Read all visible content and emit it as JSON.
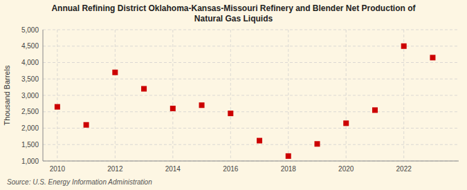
{
  "chart_data": {
    "type": "scatter",
    "title": "Annual Refining District Oklahoma-Kansas-Missouri Refinery and Blender Net Production of\nNatural Gas Liquids",
    "ylabel": "Thousand Barrels",
    "source": "Source: U.S. Energy Information Administration",
    "x": [
      2010,
      2011,
      2012,
      2013,
      2014,
      2015,
      2016,
      2017,
      2018,
      2019,
      2020,
      2021,
      2022,
      2023
    ],
    "values": [
      2650,
      2100,
      3700,
      3200,
      2600,
      2700,
      2450,
      1620,
      1150,
      1520,
      2150,
      2550,
      4500,
      4150
    ],
    "color": "#cc0000",
    "marker": "square",
    "xlim": [
      2009.5,
      2023.9
    ],
    "xticks": [
      2010,
      2012,
      2014,
      2016,
      2018,
      2020,
      2022
    ],
    "ylim": [
      1000,
      5000
    ],
    "yticks": [
      {
        "value": 1000,
        "label": "1,000"
      },
      {
        "value": 1500,
        "label": "1,500"
      },
      {
        "value": 2000,
        "label": "2,000"
      },
      {
        "value": 2500,
        "label": "2,500"
      },
      {
        "value": 3000,
        "label": "3,000"
      },
      {
        "value": 3500,
        "label": "3,500"
      },
      {
        "value": 4000,
        "label": "4,000"
      },
      {
        "value": 4500,
        "label": "4,500"
      },
      {
        "value": 5000,
        "label": "5,000"
      }
    ],
    "grid": true
  }
}
